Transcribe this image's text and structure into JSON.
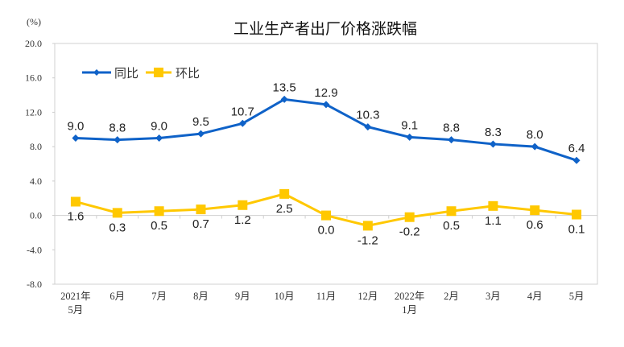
{
  "chart_data": {
    "type": "line",
    "title": "工业生产者出厂价格涨跌幅",
    "ylabel": "(%)",
    "ylim": [
      -8,
      20
    ],
    "yticks": [
      "20.0",
      "16.0",
      "12.0",
      "8.0",
      "4.0",
      "0.0",
      "-4.0",
      "-8.0"
    ],
    "ytick_values": [
      20,
      16,
      12,
      8,
      4,
      0,
      -4,
      -8
    ],
    "categories": [
      [
        "2021年",
        "5月"
      ],
      [
        "6月"
      ],
      [
        "7月"
      ],
      [
        "8月"
      ],
      [
        "9月"
      ],
      [
        "10月"
      ],
      [
        "11月"
      ],
      [
        "12月"
      ],
      [
        "2022年",
        "1月"
      ],
      [
        "2月"
      ],
      [
        "3月"
      ],
      [
        "4月"
      ],
      [
        "5月"
      ]
    ],
    "legend_position": "top-left",
    "grid": false,
    "series": [
      {
        "name": "同比",
        "color": "#0f62c8",
        "marker": "diamond",
        "values": [
          9.0,
          8.8,
          9.0,
          9.5,
          10.7,
          13.5,
          12.9,
          10.3,
          9.1,
          8.8,
          8.3,
          8.0,
          6.4
        ],
        "labels": [
          "9.0",
          "8.8",
          "9.0",
          "9.5",
          "10.7",
          "13.5",
          "12.9",
          "10.3",
          "9.1",
          "8.8",
          "8.3",
          "8.0",
          "6.4"
        ]
      },
      {
        "name": "环比",
        "color": "#ffc800",
        "marker": "square",
        "values": [
          1.6,
          0.3,
          0.5,
          0.7,
          1.2,
          2.5,
          0.0,
          -1.2,
          -0.2,
          0.5,
          1.1,
          0.6,
          0.1
        ],
        "labels": [
          "1.6",
          "0.3",
          "0.5",
          "0.7",
          "1.2",
          "2.5",
          "0.0",
          "-1.2",
          "-0.2",
          "0.5",
          "1.1",
          "0.6",
          "0.1"
        ]
      }
    ]
  }
}
